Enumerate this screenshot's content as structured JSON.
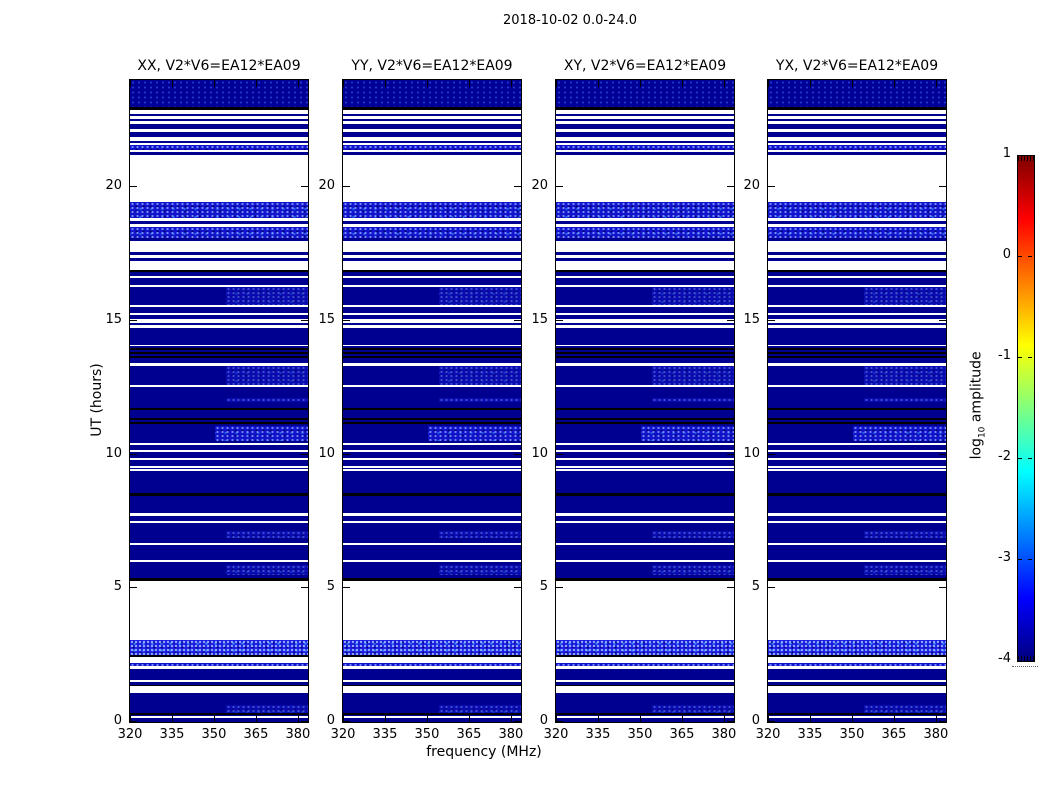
{
  "figure": {
    "title": "2018-10-02 0.0-24.0",
    "xlabel": "frequency (MHz)",
    "ylabel": "UT (hours)",
    "colorbar_label_prefix": "log",
    "colorbar_label_sub": "10",
    "colorbar_label_suffix": " amplitude"
  },
  "chart_data": {
    "type": "heatmap",
    "title": "2018-10-02 0.0-24.0",
    "xlabel": "frequency (MHz)",
    "ylabel": "UT (hours)",
    "panels": [
      "XX, V2*V6=EA12*EA09",
      "YY, V2*V6=EA12*EA09",
      "XY, V2*V6=EA12*EA09",
      "YX, V2*V6=EA12*EA09"
    ],
    "x_range_mhz": [
      320,
      383.6
    ],
    "xticks": [
      320,
      335,
      350,
      365,
      380
    ],
    "y_range_hours": [
      0,
      24
    ],
    "yticks": [
      0,
      5,
      10,
      15,
      20
    ],
    "colorbar": {
      "label": "log10 amplitude",
      "colormap": "jet",
      "range": [
        -4,
        1
      ],
      "ticks": [
        1,
        0,
        -1,
        -2,
        -3,
        -4
      ]
    },
    "background_level_log10": -4,
    "bright_band_level_log10": -3.3,
    "colors": {
      "data_background": "#000090",
      "flagged_blank": "#ffffff",
      "black_row": "#000000",
      "bright_speckle": "#1b1be0"
    },
    "stripe_types": {
      "w": "flagged blank (white) rows",
      "k": "black rows",
      "s": "bright speckled band (full width)",
      "S": "strong bright speckled band (full width)",
      "r": "speckle on high-frequency half only",
      "R": "strong speckle on high-frequency half only",
      "f": "faint speckle over background"
    },
    "flag_stripes_hours": [
      [
        23.0,
        24.0,
        "f"
      ],
      [
        22.88,
        23.0,
        "k"
      ],
      [
        22.73,
        22.88,
        "w"
      ],
      [
        22.54,
        22.65,
        "w"
      ],
      [
        22.36,
        22.47,
        "w"
      ],
      [
        22.06,
        22.17,
        "w"
      ],
      [
        21.72,
        21.87,
        "w"
      ],
      [
        21.57,
        21.65,
        "w"
      ],
      [
        21.38,
        21.57,
        "s"
      ],
      [
        21.31,
        21.38,
        "w"
      ],
      [
        19.44,
        21.2,
        "w"
      ],
      [
        18.84,
        19.44,
        "s"
      ],
      [
        18.73,
        18.84,
        "w"
      ],
      [
        18.5,
        18.62,
        "w"
      ],
      [
        18.09,
        18.5,
        "s"
      ],
      [
        17.57,
        17.98,
        "w"
      ],
      [
        17.35,
        17.46,
        "w"
      ],
      [
        16.9,
        17.23,
        "w"
      ],
      [
        16.82,
        16.9,
        "k"
      ],
      [
        16.6,
        16.67,
        "w"
      ],
      [
        16.26,
        16.34,
        "w"
      ],
      [
        15.59,
        16.26,
        "r"
      ],
      [
        15.51,
        15.59,
        "w"
      ],
      [
        15.21,
        15.29,
        "w"
      ],
      [
        14.92,
        15.07,
        "w"
      ],
      [
        14.73,
        14.84,
        "w"
      ],
      [
        14.04,
        14.09,
        "w"
      ],
      [
        13.91,
        13.98,
        "k"
      ],
      [
        13.76,
        13.83,
        "k"
      ],
      [
        13.61,
        13.68,
        "k"
      ],
      [
        13.31,
        13.42,
        "w"
      ],
      [
        12.6,
        13.31,
        "r"
      ],
      [
        12.52,
        12.6,
        "w"
      ],
      [
        11.96,
        12.11,
        "r"
      ],
      [
        11.66,
        11.74,
        "k"
      ],
      [
        11.29,
        11.36,
        "k"
      ],
      [
        11.14,
        11.21,
        "k"
      ],
      [
        10.5,
        11.07,
        "R"
      ],
      [
        10.36,
        10.43,
        "w"
      ],
      [
        10.09,
        10.17,
        "w"
      ],
      [
        9.79,
        9.87,
        "w"
      ],
      [
        9.5,
        9.57,
        "w"
      ],
      [
        9.38,
        9.46,
        "w"
      ],
      [
        8.45,
        8.56,
        "k"
      ],
      [
        7.7,
        7.81,
        "w"
      ],
      [
        7.44,
        7.51,
        "w"
      ],
      [
        6.88,
        7.14,
        "r"
      ],
      [
        6.62,
        6.69,
        "w"
      ],
      [
        5.98,
        6.06,
        "w"
      ],
      [
        5.5,
        5.87,
        "r"
      ],
      [
        5.27,
        5.38,
        "k"
      ],
      [
        3.07,
        5.27,
        "w"
      ],
      [
        2.5,
        3.07,
        "S"
      ],
      [
        2.43,
        2.5,
        "k"
      ],
      [
        2.21,
        2.43,
        "w"
      ],
      [
        2.09,
        2.21,
        "s"
      ],
      [
        1.98,
        2.09,
        "w"
      ],
      [
        1.51,
        1.57,
        "w"
      ],
      [
        1.35,
        1.38,
        "k"
      ],
      [
        1.08,
        1.35,
        "w"
      ],
      [
        0.34,
        0.64,
        "r"
      ],
      [
        0.26,
        0.34,
        "k"
      ],
      [
        0.15,
        0.22,
        "w"
      ]
    ]
  }
}
